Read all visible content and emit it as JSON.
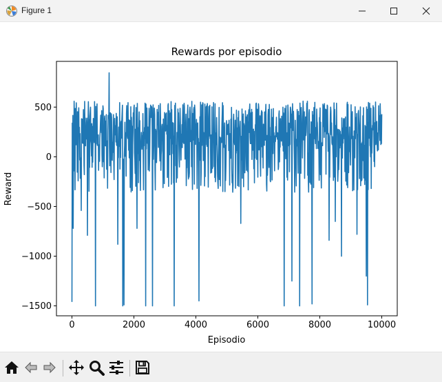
{
  "window": {
    "title": "Figure 1",
    "icon": "matplotlib-figure-icon"
  },
  "toolbar": {
    "buttons": [
      {
        "name": "home-icon",
        "tooltip": "Reset original view"
      },
      {
        "name": "back-arrow-icon",
        "tooltip": "Back"
      },
      {
        "name": "forward-arrow-icon",
        "tooltip": "Forward"
      },
      {
        "name": "pan-icon",
        "tooltip": "Pan"
      },
      {
        "name": "zoom-icon",
        "tooltip": "Zoom"
      },
      {
        "name": "configure-subplots-icon",
        "tooltip": "Configure subplots"
      },
      {
        "name": "save-icon",
        "tooltip": "Save"
      }
    ]
  },
  "chart_data": {
    "type": "line",
    "title": "Rewards por episodio",
    "xlabel": "Episodio",
    "ylabel": "Reward",
    "xlim": [
      -500,
      10500
    ],
    "ylim": [
      -1600,
      960
    ],
    "xticks": [
      0,
      2000,
      4000,
      6000,
      8000,
      10000
    ],
    "xtick_labels": [
      "0",
      "2000",
      "4000",
      "6000",
      "8000",
      "10000"
    ],
    "yticks": [
      -1500,
      -1000,
      -500,
      0,
      500
    ],
    "ytick_labels": [
      "−1500",
      "−1000",
      "−500",
      "0",
      "500"
    ],
    "grid": false,
    "line_color": "#1f77b4",
    "series": [
      {
        "x_range": [
          0,
          10000
        ],
        "typical_band": [
          -80,
          600
        ],
        "max": 845,
        "min": -1500,
        "spikes": [
          {
            "x": 0,
            "y": -1460
          },
          {
            "x": 40,
            "y": -720
          },
          {
            "x": 300,
            "y": -540
          },
          {
            "x": 500,
            "y": -790
          },
          {
            "x": 760,
            "y": -1500
          },
          {
            "x": 1200,
            "y": 845
          },
          {
            "x": 1480,
            "y": -880
          },
          {
            "x": 1640,
            "y": -1500
          },
          {
            "x": 1680,
            "y": -1490
          },
          {
            "x": 2100,
            "y": -720
          },
          {
            "x": 2380,
            "y": -1500
          },
          {
            "x": 2600,
            "y": -1500
          },
          {
            "x": 3300,
            "y": -1500
          },
          {
            "x": 4100,
            "y": -1450
          },
          {
            "x": 5450,
            "y": -670
          },
          {
            "x": 6850,
            "y": -1500
          },
          {
            "x": 7100,
            "y": -1250
          },
          {
            "x": 7350,
            "y": -1500
          },
          {
            "x": 7750,
            "y": -1480
          },
          {
            "x": 8300,
            "y": -840
          },
          {
            "x": 8500,
            "y": -650
          },
          {
            "x": 8700,
            "y": -1000
          },
          {
            "x": 9200,
            "y": -780
          },
          {
            "x": 9540,
            "y": -1490
          },
          {
            "x": 9500,
            "y": -1200
          }
        ]
      }
    ]
  }
}
